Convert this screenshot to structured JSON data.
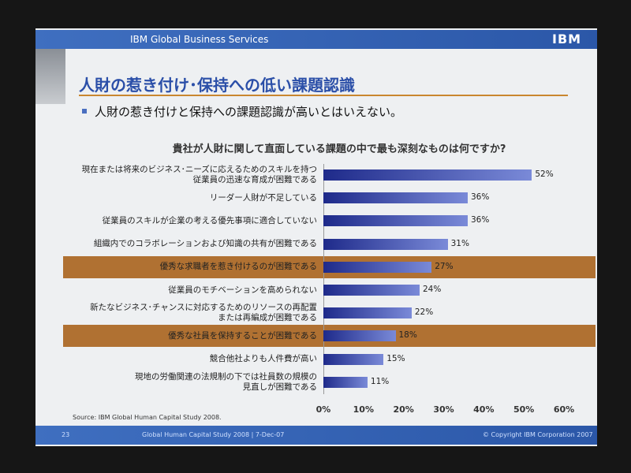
{
  "slide": {
    "header": "IBM Global Business Services",
    "logo": "IBM",
    "title": "人財の惹き付け･保持への低い課題認識",
    "bullet": "人財の惹き付けと保持への課題認識が高いとはいえない。",
    "source": "Source: IBM Global Human Capital Study 2008.",
    "page": "23",
    "footer": "Global Human Capital Study 2008 | 7-Dec-07",
    "copyright": "© Copyright IBM Corporation 2007"
  },
  "chart_data": {
    "type": "barh",
    "title": "貴社が人財に関して直面している課題の中で最も深刻なものは何ですか?",
    "categories": [
      "現在または将来のビジネス･ニーズに応えるためのスキルを持つ\n従業員の迅速な育成が困難である",
      "リーダー人財が不足している",
      "従業員のスキルが企業の考える優先事項に適合していない",
      "組織内でのコラボレーションおよび知識の共有が困難である",
      "優秀な求職者を惹き付けるのが困難である",
      "従業員のモチベーションを高められない",
      "新たなビジネス･チャンスに対応するためのリソースの再配置\nまたは再編成が困難である",
      "優秀な社員を保持することが困難である",
      "競合他社よりも人件費が高い",
      "現地の労働関連の法規制の下では社員数の規模の\n見直しが困難である"
    ],
    "values": [
      52,
      36,
      36,
      31,
      27,
      24,
      22,
      18,
      15,
      11
    ],
    "value_labels": [
      "52%",
      "36%",
      "36%",
      "31%",
      "27%",
      "24%",
      "22%",
      "18%",
      "15%",
      "11%"
    ],
    "color": "#1e2a8a",
    "highlight": [
      4,
      7
    ],
    "highlight_color": "#b07132",
    "xlim": [
      0,
      60
    ],
    "xticks": [
      {
        "value": 0,
        "label": "0%"
      },
      {
        "value": 10,
        "label": "10%"
      },
      {
        "value": 20,
        "label": "20%"
      },
      {
        "value": 30,
        "label": "30%"
      },
      {
        "value": 40,
        "label": "40%"
      },
      {
        "value": 50,
        "label": "50%"
      },
      {
        "value": 60,
        "label": "60%"
      }
    ]
  }
}
